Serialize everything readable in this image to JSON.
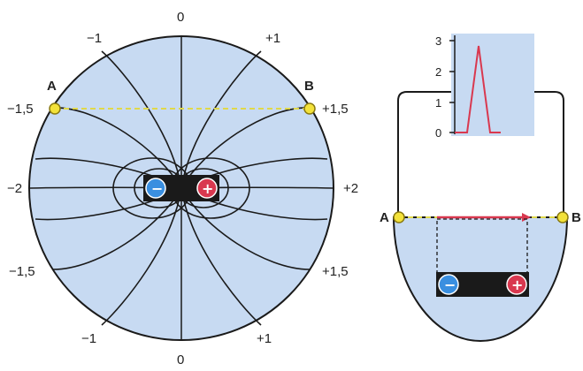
{
  "colors": {
    "field_fill": "#c7daf2",
    "line": "#1a1a1a",
    "point": "#f3e23a",
    "negative": "#3a8fe0",
    "positive": "#d9384f",
    "graph_line": "#d9384f",
    "dashed_ab": "#e0d84a"
  },
  "left": {
    "labels": {
      "top_zero": "0",
      "bottom_zero": "0",
      "top_left_minus1": "−1",
      "top_right_plus1": "+1",
      "left_minus15_top": "−1,5",
      "right_plus15_top": "+1,5",
      "left_minus2": "−2",
      "right_plus2": "+2",
      "left_minus15_bottom": "−1,5",
      "right_plus15_bottom": "+1,5",
      "bottom_left_minus1": "−1",
      "bottom_right_plus1": "+1"
    },
    "point_a": "A",
    "point_b": "B",
    "battery": {
      "negative_sign": "−",
      "positive_sign": "+"
    }
  },
  "right": {
    "point_a": "A",
    "point_b": "B",
    "graph": {
      "y_ticks": [
        "3",
        "2",
        "1",
        "0"
      ]
    },
    "battery": {
      "negative_sign": "−",
      "positive_sign": "+"
    }
  }
}
